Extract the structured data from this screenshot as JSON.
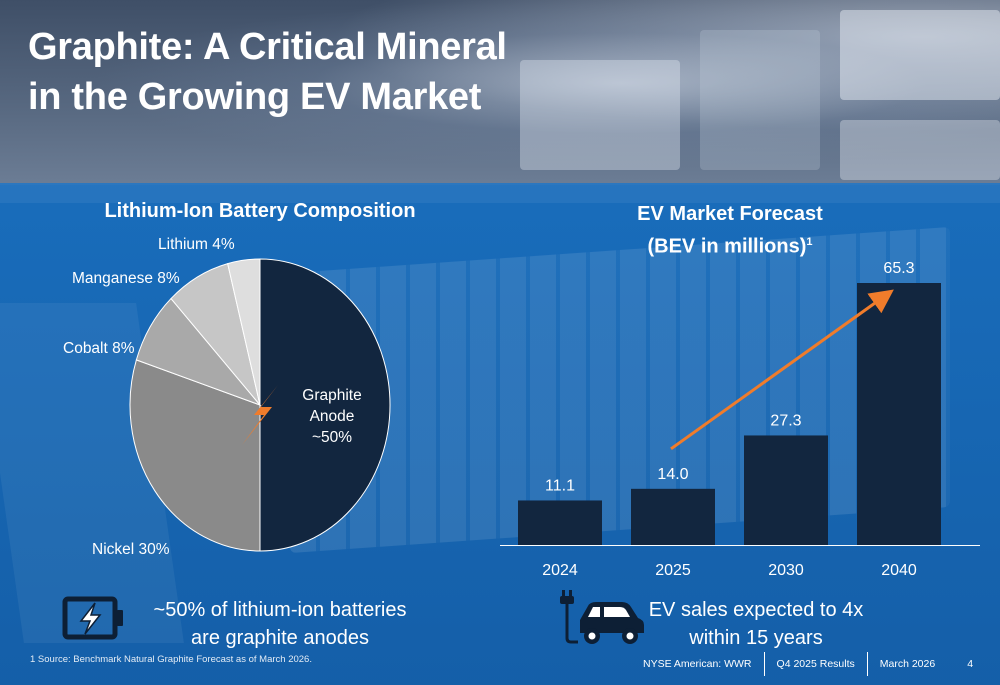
{
  "title_line1": "Graphite: A Critical Mineral",
  "title_line2": "in the Growing EV Market",
  "pie_chart": {
    "heading": "Lithium-Ion Battery Composition"
  },
  "bar_chart": {
    "heading_line1": "EV Market Forecast",
    "heading_line2": "(BEV in millions)",
    "heading_sup": "1"
  },
  "chart_data": [
    {
      "type": "pie",
      "title": "Lithium-Ion Battery Composition",
      "slices": [
        {
          "label": "Graphite Anode",
          "display": "~50%",
          "value": 50,
          "color": "#12263f"
        },
        {
          "label": "Nickel",
          "display": "Nickel 30%",
          "value": 30,
          "color": "#8a8a8a"
        },
        {
          "label": "Cobalt",
          "display": "Cobalt 8%",
          "value": 8,
          "color": "#a9a9a9"
        },
        {
          "label": "Manganese",
          "display": "Manganese 8%",
          "value": 8,
          "color": "#c6c6c6"
        },
        {
          "label": "Lithium",
          "display": "Lithium 4%",
          "value": 4,
          "color": "#dedede"
        }
      ]
    },
    {
      "type": "bar",
      "title": "EV Market Forecast (BEV in millions)",
      "categories": [
        "2024",
        "2025",
        "2030",
        "2040"
      ],
      "values": [
        11.1,
        14.0,
        27.3,
        65.3
      ],
      "value_labels": [
        "11.1",
        "14.0",
        "27.3",
        "65.3"
      ],
      "ylim": [
        0,
        65.3
      ],
      "bar_color": "#12263f",
      "trend_color": "#f07c2b"
    }
  ],
  "graphite_label": {
    "line1": "Graphite",
    "line2": "Anode",
    "line3": "~50%"
  },
  "callouts": {
    "left_line1": "~50% of lithium-ion batteries",
    "left_line2": "are graphite anodes",
    "right_line1": "EV sales expected to 4x",
    "right_line2": "within 15 years"
  },
  "footnote": "1 Source: Benchmark Natural Graphite Forecast as of March 2026.",
  "footer": {
    "ticker": "NYSE American: WWR",
    "report": "Q4 2025 Results",
    "date": "March 2026",
    "page": "4"
  },
  "icons": {
    "battery": "battery-charging-icon",
    "car": "electric-car-icon",
    "bolt": "lightning-bolt-icon"
  },
  "colors": {
    "accent": "#f07c2b",
    "navy": "#12263f",
    "panel_blue": "#1a6cb8"
  }
}
